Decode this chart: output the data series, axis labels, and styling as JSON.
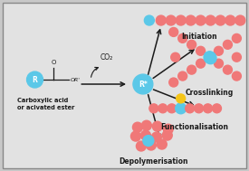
{
  "bg_color": "#c8c8c8",
  "inner_bg_color": "#e2e2e2",
  "salmon": "#F07878",
  "cyan": "#5BC8E8",
  "yellow": "#F5C518",
  "text_color": "#1a1a1a",
  "labels": {
    "initiation": "Initiation",
    "crosslinking": "Crosslinking",
    "functionalisation": "Functionalisation",
    "depolymerisation": "Depolymerisation",
    "carboxylic": "Carboxylic acid\nor acivated ester",
    "co2": "CO₂",
    "radical": "R*"
  }
}
